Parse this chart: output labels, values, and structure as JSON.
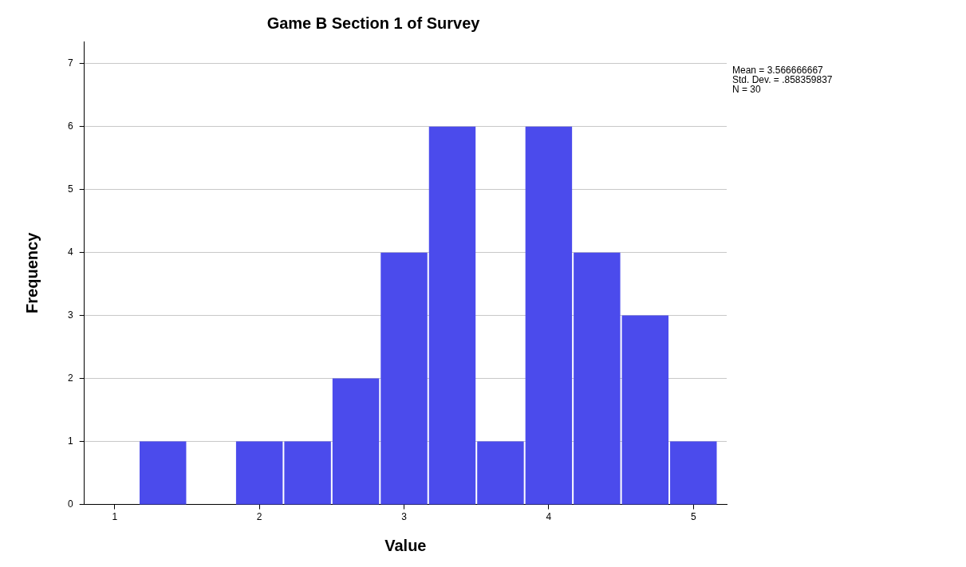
{
  "chart_data": {
    "type": "histogram",
    "title": "Game B Section 1 of Survey",
    "xlabel": "Value",
    "ylabel": "Frequency",
    "bins": [
      1.1667,
      1.5,
      1.8333,
      2.1667,
      2.5,
      2.8333,
      3.1667,
      3.5,
      3.8333,
      4.1667,
      4.5,
      4.8333,
      5.1667
    ],
    "values": [
      1,
      0,
      1,
      1,
      2,
      4,
      6,
      1,
      6,
      4,
      3,
      1
    ],
    "color": "#4b4bec",
    "xlim": [
      0.79,
      5.23
    ],
    "xticks": [
      1,
      2,
      3,
      4,
      5
    ],
    "ylim": [
      0,
      7.35
    ],
    "yticks": [
      0,
      1,
      2,
      3,
      4,
      5,
      6,
      7
    ],
    "grid": "y",
    "annotations": [
      "Mean = 3.566666667",
      "Std. Dev. = .858359837",
      "N = 30"
    ]
  }
}
